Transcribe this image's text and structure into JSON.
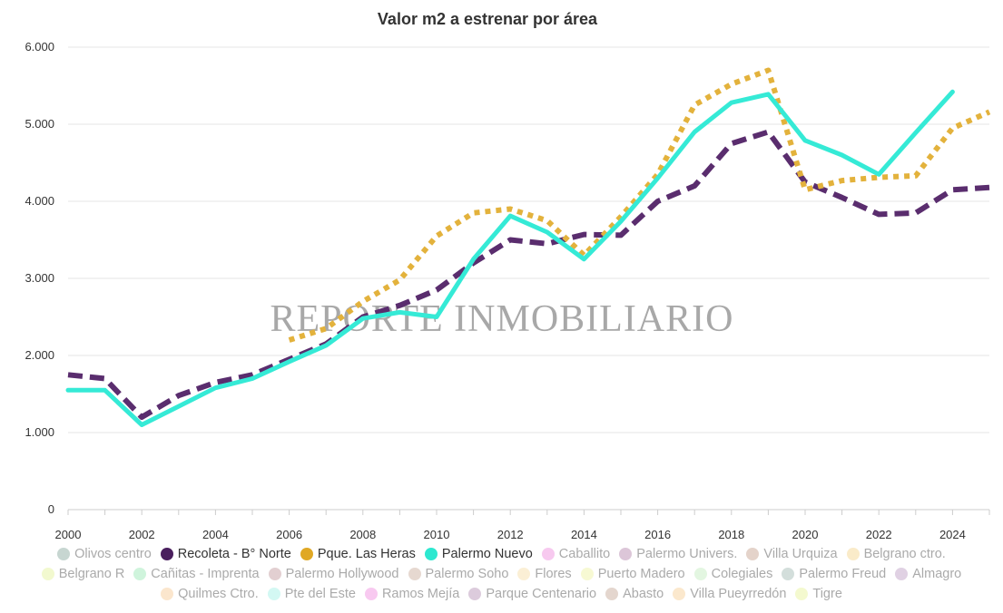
{
  "chart_data": {
    "type": "line",
    "title": "Valor m2 a estrenar por área",
    "watermark": "REPORTE INMOBILIARIO",
    "xlabel": "",
    "ylabel": "",
    "xlim": [
      2000,
      2025
    ],
    "ylim": [
      0,
      6000
    ],
    "x_ticks": [
      2000,
      2002,
      2004,
      2006,
      2008,
      2010,
      2012,
      2014,
      2016,
      2018,
      2020,
      2022,
      2024
    ],
    "x_tick_labels": [
      "2000",
      "2002",
      "2004",
      "2006",
      "2008",
      "2010",
      "2012",
      "2014",
      "2016",
      "2018",
      "2020",
      "2022",
      "2024"
    ],
    "y_ticks": [
      0,
      1000,
      2000,
      3000,
      4000,
      5000,
      6000
    ],
    "y_tick_labels": [
      "0",
      "1.000",
      "2.000",
      "3.000",
      "4.000",
      "5.000",
      "6.000"
    ],
    "grid": "horizontal",
    "legend_position": "bottom",
    "series": [
      {
        "name": "Recoleta - B° Norte",
        "color": "#5a2d6e",
        "style": "dashed",
        "x": [
          2000,
          2001,
          2002,
          2003,
          2004,
          2005,
          2006,
          2007,
          2008,
          2009,
          2010,
          2011,
          2012,
          2013,
          2014,
          2015,
          2016,
          2017,
          2018,
          2019,
          2020,
          2021,
          2022,
          2023,
          2024,
          2025
        ],
        "values": [
          1750,
          1700,
          1200,
          1480,
          1650,
          1750,
          1950,
          2150,
          2500,
          2650,
          2850,
          3200,
          3500,
          3450,
          3570,
          3560,
          4000,
          4200,
          4750,
          4900,
          4250,
          4050,
          3830,
          3850,
          4150,
          4180
        ]
      },
      {
        "name": "Pque. Las Heras",
        "color": "#e3b23c",
        "style": "dotted",
        "x": [
          2006,
          2007,
          2008,
          2009,
          2010,
          2011,
          2012,
          2013,
          2014,
          2015,
          2016,
          2017,
          2018,
          2019,
          2020,
          2021,
          2022,
          2023,
          2024,
          2025
        ],
        "values": [
          2200,
          2350,
          2700,
          2980,
          3550,
          3850,
          3900,
          3750,
          3300,
          3800,
          4350,
          5250,
          5520,
          5700,
          4150,
          4270,
          4310,
          4330,
          4950,
          5160
        ]
      },
      {
        "name": "Palermo Nuevo",
        "color": "#35ead6",
        "style": "solid",
        "x": [
          2000,
          2001,
          2002,
          2003,
          2004,
          2005,
          2006,
          2007,
          2008,
          2009,
          2010,
          2011,
          2012,
          2013,
          2014,
          2015,
          2016,
          2017,
          2018,
          2019,
          2020,
          2021,
          2022,
          2023,
          2024
        ],
        "values": [
          1550,
          1550,
          1100,
          1340,
          1580,
          1700,
          1920,
          2130,
          2480,
          2560,
          2500,
          3250,
          3810,
          3600,
          3250,
          3740,
          4300,
          4900,
          5280,
          5390,
          4790,
          4600,
          4350,
          4890,
          5420
        ]
      }
    ],
    "legend": [
      {
        "name": "Olivos centro",
        "color": "#c7d6d1",
        "visible": false
      },
      {
        "name": "Recoleta - B° Norte",
        "color": "#4a1f5e",
        "visible": true
      },
      {
        "name": "Pque. Las Heras",
        "color": "#e0a824",
        "visible": true
      },
      {
        "name": "Palermo Nuevo",
        "color": "#2de8d0",
        "visible": true
      },
      {
        "name": "Caballito",
        "color": "#f7c9ef",
        "visible": false
      },
      {
        "name": "Palermo Univers.",
        "color": "#dcc6d8",
        "visible": false
      },
      {
        "name": "Villa Urquiza",
        "color": "#e4d3ca",
        "visible": false
      },
      {
        "name": "Belgrano ctro.",
        "color": "#faebc9",
        "visible": false
      },
      {
        "name": "Belgrano R",
        "color": "#f2f9cf",
        "visible": false
      },
      {
        "name": "Cañitas - Imprenta",
        "color": "#cff4dc",
        "visible": false
      },
      {
        "name": "Palermo Hollywood",
        "color": "#e2cfd1",
        "visible": false
      },
      {
        "name": "Palermo Soho",
        "color": "#e6d8d0",
        "visible": false
      },
      {
        "name": "Flores",
        "color": "#fbefd5",
        "visible": false
      },
      {
        "name": "Puerto Madero",
        "color": "#f7f9d3",
        "visible": false
      },
      {
        "name": "Colegiales",
        "color": "#e3f6e1",
        "visible": false
      },
      {
        "name": "Palermo Freud",
        "color": "#d3dedb",
        "visible": false
      },
      {
        "name": "Almagro",
        "color": "#e0d1e3",
        "visible": false
      },
      {
        "name": "Quilmes Ctro.",
        "color": "#fbe6cd",
        "visible": false
      },
      {
        "name": "Pte del Este",
        "color": "#d3f8f3",
        "visible": false
      },
      {
        "name": "Ramos Mejía",
        "color": "#f8c9f0",
        "visible": false
      },
      {
        "name": "Parque Centenario",
        "color": "#dccbdc",
        "visible": false
      },
      {
        "name": "Abasto",
        "color": "#e4d6ce",
        "visible": false
      },
      {
        "name": "Villa Pueyrredón",
        "color": "#fbe8cd",
        "visible": false
      },
      {
        "name": "Tigre",
        "color": "#f4f9cf",
        "visible": false
      }
    ]
  }
}
